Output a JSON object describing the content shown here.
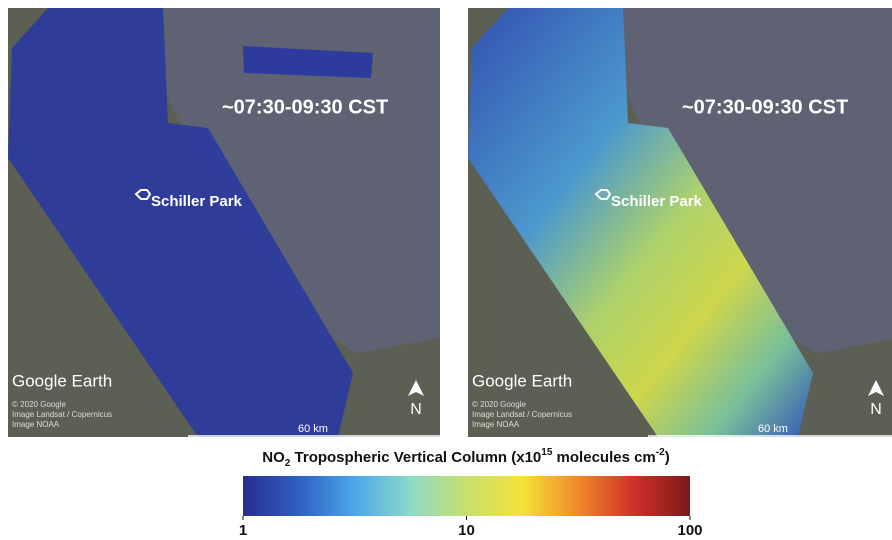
{
  "panels": [
    {
      "time_label": "~07:30-09:30 CST",
      "location_label": "Schiller Park",
      "watermark": "Google Earth",
      "credits": [
        "© 2020 Google",
        "Image Landsat / Copernicus",
        "Image NOAA"
      ],
      "scale_label": "60 km",
      "north_label": "N"
    },
    {
      "time_label": "~07:30-09:30 CST",
      "location_label": "Schiller Park",
      "watermark": "Google Earth",
      "credits": [
        "© 2020 Google",
        "Image Landsat / Copernicus",
        "Image NOAA"
      ],
      "scale_label": "60 km",
      "north_label": "N"
    }
  ],
  "colorbar": {
    "title_parts": [
      "NO",
      "2",
      " Tropospheric Vertical Column (x10",
      "15",
      " molecules cm",
      "-2",
      ")"
    ],
    "scale": "log",
    "lim": [
      1,
      100
    ],
    "ticks": [
      1,
      10,
      100
    ],
    "colors": [
      "#2a2d8f",
      "#2f5fc4",
      "#4aa8e8",
      "#8ed9c8",
      "#c8e06a",
      "#f4e23a",
      "#f08a2a",
      "#d0302a",
      "#7a1a1a"
    ]
  }
}
